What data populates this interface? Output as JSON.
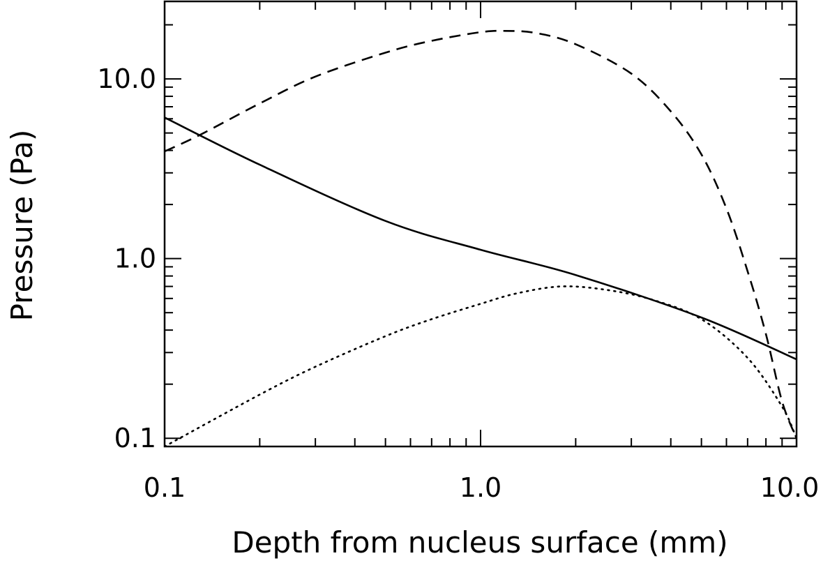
{
  "chart_data": {
    "type": "line",
    "title": "",
    "xlabel": "Depth from nucleus surface (mm)",
    "ylabel": "Pressure (Pa)",
    "xscale": "log",
    "yscale": "log",
    "xlim": [
      0.1,
      10.0
    ],
    "ylim": [
      0.09,
      27
    ],
    "x_ticks": [
      {
        "value": 0.1,
        "label": "0.1"
      },
      {
        "value": 1.0,
        "label": "1.0"
      },
      {
        "value": 10.0,
        "label": "10.0"
      }
    ],
    "y_ticks": [
      {
        "value": 0.1,
        "label": "0.1"
      },
      {
        "value": 1.0,
        "label": "1.0"
      },
      {
        "value": 10.0,
        "label": "10.0"
      }
    ],
    "grid": false,
    "legend": "none",
    "color": "#000000",
    "series": [
      {
        "style": "solid",
        "x": [
          0.1,
          0.2,
          0.5,
          1.0,
          2.0,
          5.0,
          10.0
        ],
        "y": [
          6.1,
          3.33,
          1.62,
          1.12,
          0.81,
          0.47,
          0.275
        ]
      },
      {
        "style": "dashed",
        "x": [
          0.1,
          0.13,
          0.2,
          0.3,
          0.5,
          0.7,
          1.0,
          1.2,
          1.5,
          2.0,
          3.0,
          4.0,
          5.0,
          6.0,
          7.0,
          8.0,
          9.0,
          10.0
        ],
        "y": [
          3.95,
          4.9,
          7.3,
          10.3,
          14.0,
          16.3,
          18.2,
          18.5,
          18.0,
          15.6,
          10.7,
          6.6,
          3.8,
          1.9,
          0.85,
          0.38,
          0.16,
          0.1
        ]
      },
      {
        "style": "dotted",
        "x": [
          0.1,
          0.2,
          0.3,
          0.5,
          0.7,
          1.0,
          1.3,
          1.8,
          2.5,
          3.5,
          5.0,
          7.0,
          9.0,
          10.0
        ],
        "y": [
          0.09,
          0.175,
          0.25,
          0.37,
          0.46,
          0.56,
          0.64,
          0.7,
          0.67,
          0.59,
          0.46,
          0.28,
          0.15,
          0.1
        ]
      }
    ]
  }
}
